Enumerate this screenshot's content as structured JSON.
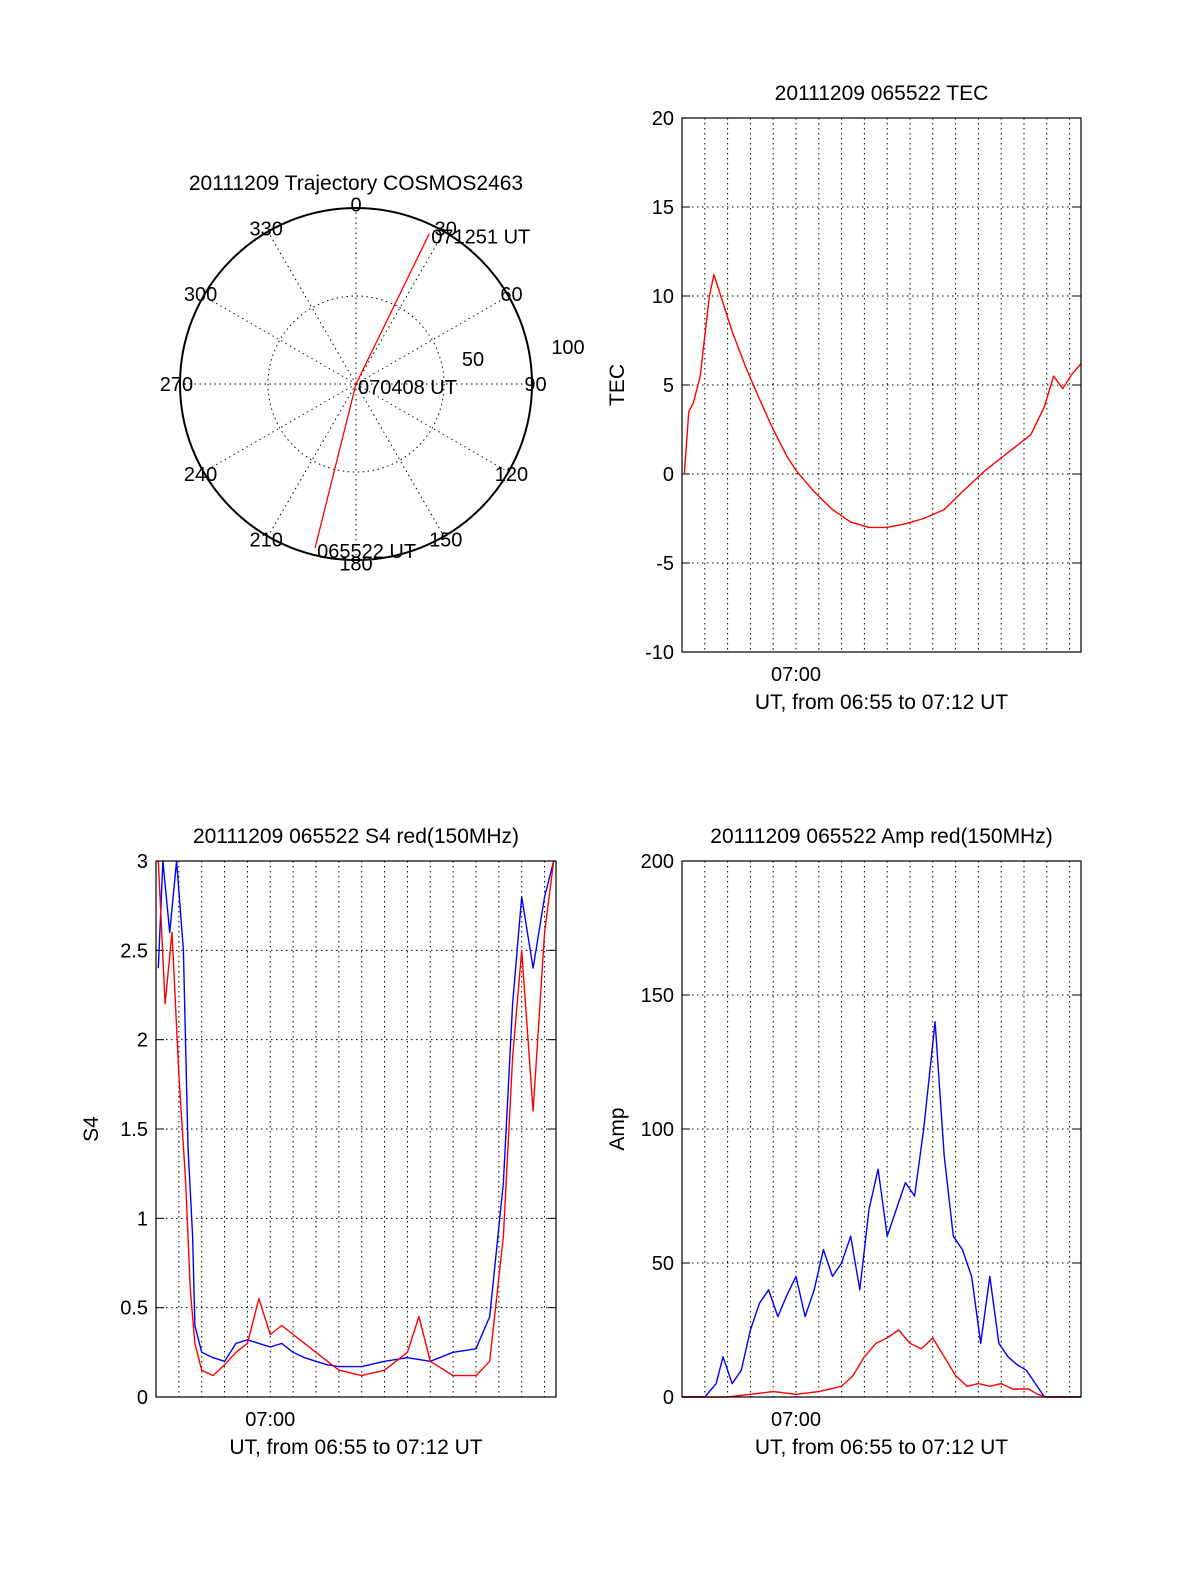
{
  "chart_data": [
    {
      "type": "polar",
      "title": "20111209 Trajectory COSMOS2463",
      "azimuth_labels": [
        "0",
        "30",
        "60",
        "90",
        "120",
        "150",
        "180",
        "210",
        "240",
        "270",
        "300",
        "330"
      ],
      "radius_labels": [
        "50",
        "100"
      ],
      "series": [
        {
          "color": "#ff0000",
          "points": [
            [
              194,
              96
            ],
            [
              0,
              0
            ],
            [
              26,
              95
            ]
          ]
        }
      ],
      "annotations": [
        {
          "text": "071251 UT",
          "az": 26,
          "r": 95
        },
        {
          "text": "070408 UT",
          "az": 0,
          "r": 0
        },
        {
          "text": "065522 UT",
          "az": 194,
          "r": 96
        }
      ]
    },
    {
      "type": "line",
      "title": "20111209 065522 TEC",
      "xlabel": "UT, from 06:55 to 07:12 UT",
      "ylabel": "TEC",
      "x_tick_label": "07:00",
      "xlim": [
        0,
        17.5
      ],
      "ylim": [
        -10,
        20
      ],
      "yticks": [
        "20",
        "15",
        "10",
        "5",
        "0",
        "-5",
        "-10"
      ],
      "grid": true,
      "series": [
        {
          "color": "#ff0000",
          "points": [
            [
              0.1,
              0
            ],
            [
              0.3,
              3.5
            ],
            [
              0.5,
              4
            ],
            [
              0.8,
              5.5
            ],
            [
              1.2,
              10
            ],
            [
              1.4,
              11.2
            ],
            [
              1.7,
              10
            ],
            [
              2.2,
              8
            ],
            [
              2.8,
              6
            ],
            [
              3.4,
              4.2
            ],
            [
              4,
              2.5
            ],
            [
              4.6,
              1
            ],
            [
              5,
              0.2
            ],
            [
              5.8,
              -1
            ],
            [
              6.6,
              -2
            ],
            [
              7.4,
              -2.7
            ],
            [
              8.2,
              -3
            ],
            [
              9,
              -3
            ],
            [
              9.8,
              -2.8
            ],
            [
              10.6,
              -2.5
            ],
            [
              11.5,
              -2
            ],
            [
              12.3,
              -1
            ],
            [
              13.3,
              0.2
            ],
            [
              14.3,
              1.2
            ],
            [
              15.3,
              2.2
            ],
            [
              15.9,
              3.8
            ],
            [
              16.3,
              5.5
            ],
            [
              16.7,
              4.8
            ],
            [
              17.1,
              5.6
            ],
            [
              17.5,
              6.2
            ]
          ]
        }
      ]
    },
    {
      "type": "line",
      "title": "20111209 065522 S4 red(150MHz)",
      "xlabel": "UT, from 06:55 to 07:12 UT",
      "ylabel": "S4",
      "x_tick_label": "07:00",
      "xlim": [
        0,
        17.5
      ],
      "ylim": [
        0,
        3
      ],
      "yticks": [
        "3",
        "2.5",
        "2",
        "1.5",
        "1",
        "0.5",
        "0"
      ],
      "grid": true,
      "series": [
        {
          "color": "#0000ff",
          "points": [
            [
              0.1,
              2.4
            ],
            [
              0.3,
              3
            ],
            [
              0.6,
              2.6
            ],
            [
              0.9,
              3
            ],
            [
              1.2,
              2.5
            ],
            [
              1.4,
              1.4
            ],
            [
              1.6,
              0.9
            ],
            [
              1.7,
              0.4
            ],
            [
              2,
              0.25
            ],
            [
              2.5,
              0.22
            ],
            [
              3,
              0.2
            ],
            [
              3.5,
              0.3
            ],
            [
              4,
              0.32
            ],
            [
              4.5,
              0.3
            ],
            [
              5,
              0.28
            ],
            [
              5.5,
              0.3
            ],
            [
              6,
              0.25
            ],
            [
              6.5,
              0.22
            ],
            [
              7,
              0.2
            ],
            [
              7.5,
              0.18
            ],
            [
              8,
              0.17
            ],
            [
              9,
              0.17
            ],
            [
              10,
              0.2
            ],
            [
              11,
              0.22
            ],
            [
              12,
              0.2
            ],
            [
              13,
              0.25
            ],
            [
              14,
              0.27
            ],
            [
              14.6,
              0.45
            ],
            [
              15.2,
              1.2
            ],
            [
              15.6,
              2.2
            ],
            [
              16,
              2.8
            ],
            [
              16.5,
              2.4
            ],
            [
              17,
              2.8
            ],
            [
              17.4,
              3
            ]
          ]
        },
        {
          "color": "#ff0000",
          "points": [
            [
              0.1,
              3
            ],
            [
              0.4,
              2.2
            ],
            [
              0.7,
              2.6
            ],
            [
              1,
              1.8
            ],
            [
              1.3,
              1.2
            ],
            [
              1.5,
              0.6
            ],
            [
              1.7,
              0.3
            ],
            [
              2,
              0.15
            ],
            [
              2.5,
              0.12
            ],
            [
              3,
              0.18
            ],
            [
              3.5,
              0.25
            ],
            [
              4,
              0.3
            ],
            [
              4.5,
              0.55
            ],
            [
              5,
              0.35
            ],
            [
              5.5,
              0.4
            ],
            [
              6,
              0.35
            ],
            [
              6.5,
              0.3
            ],
            [
              7,
              0.25
            ],
            [
              7.5,
              0.2
            ],
            [
              8,
              0.15
            ],
            [
              9,
              0.12
            ],
            [
              10,
              0.15
            ],
            [
              11,
              0.25
            ],
            [
              11.5,
              0.45
            ],
            [
              12,
              0.2
            ],
            [
              13,
              0.12
            ],
            [
              14,
              0.12
            ],
            [
              14.6,
              0.2
            ],
            [
              15.2,
              0.9
            ],
            [
              15.6,
              1.9
            ],
            [
              16,
              2.5
            ],
            [
              16.5,
              1.6
            ],
            [
              17,
              2.6
            ],
            [
              17.4,
              3
            ]
          ]
        }
      ]
    },
    {
      "type": "line",
      "title": "20111209 065522 Amp red(150MHz)",
      "xlabel": "UT, from 06:55 to 07:12 UT",
      "ylabel": "Amp",
      "x_tick_label": "07:00",
      "xlim": [
        0,
        17.5
      ],
      "ylim": [
        0,
        200
      ],
      "yticks": [
        "200",
        "150",
        "100",
        "50",
        "0"
      ],
      "grid": true,
      "series": [
        {
          "color": "#0000ff",
          "points": [
            [
              0,
              0
            ],
            [
              1,
              0
            ],
            [
              1.5,
              5
            ],
            [
              1.8,
              15
            ],
            [
              2.2,
              5
            ],
            [
              2.6,
              10
            ],
            [
              3,
              25
            ],
            [
              3.4,
              35
            ],
            [
              3.8,
              40
            ],
            [
              4.2,
              30
            ],
            [
              4.6,
              38
            ],
            [
              5,
              45
            ],
            [
              5.4,
              30
            ],
            [
              5.8,
              40
            ],
            [
              6.2,
              55
            ],
            [
              6.6,
              45
            ],
            [
              7,
              50
            ],
            [
              7.4,
              60
            ],
            [
              7.8,
              40
            ],
            [
              8.2,
              70
            ],
            [
              8.6,
              85
            ],
            [
              9,
              60
            ],
            [
              9.4,
              70
            ],
            [
              9.8,
              80
            ],
            [
              10.2,
              75
            ],
            [
              10.6,
              100
            ],
            [
              11.1,
              140
            ],
            [
              11.5,
              90
            ],
            [
              11.9,
              60
            ],
            [
              12.3,
              55
            ],
            [
              12.7,
              45
            ],
            [
              13.1,
              20
            ],
            [
              13.5,
              45
            ],
            [
              13.9,
              20
            ],
            [
              14.3,
              15
            ],
            [
              14.7,
              12
            ],
            [
              15.1,
              10
            ],
            [
              15.5,
              5
            ],
            [
              15.9,
              0
            ],
            [
              17.5,
              0
            ]
          ]
        },
        {
          "color": "#ff0000",
          "points": [
            [
              0,
              0
            ],
            [
              1,
              0
            ],
            [
              2,
              0
            ],
            [
              3,
              1
            ],
            [
              4,
              2
            ],
            [
              5,
              1
            ],
            [
              6,
              2
            ],
            [
              7,
              4
            ],
            [
              7.5,
              8
            ],
            [
              8,
              15
            ],
            [
              8.5,
              20
            ],
            [
              9,
              22
            ],
            [
              9.5,
              25
            ],
            [
              10,
              20
            ],
            [
              10.5,
              18
            ],
            [
              11,
              22
            ],
            [
              11.5,
              15
            ],
            [
              12,
              8
            ],
            [
              12.5,
              4
            ],
            [
              13,
              5
            ],
            [
              13.5,
              4
            ],
            [
              14,
              5
            ],
            [
              14.5,
              3
            ],
            [
              15.2,
              3
            ],
            [
              15.6,
              1
            ],
            [
              16,
              0
            ],
            [
              17.5,
              0
            ]
          ]
        }
      ]
    }
  ]
}
